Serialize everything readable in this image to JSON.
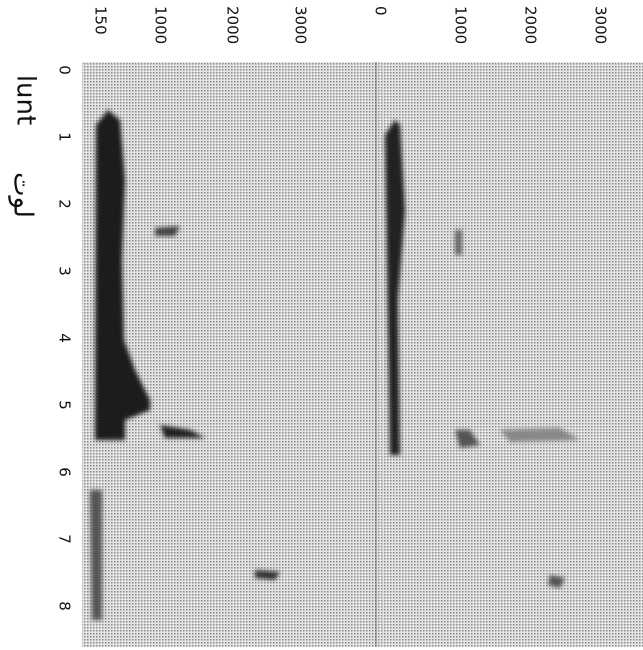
{
  "figure": {
    "label": "lunt",
    "arabic_label": "لوت",
    "time_ticks": [
      "0",
      "1",
      "2",
      "3",
      "4",
      "5",
      "6",
      "7",
      "8"
    ],
    "panel_1_ticks": [
      "150",
      "1000",
      "2000",
      "3000"
    ],
    "panel_2_ticks": [
      "0",
      "1000",
      "2000",
      "3000"
    ]
  }
}
